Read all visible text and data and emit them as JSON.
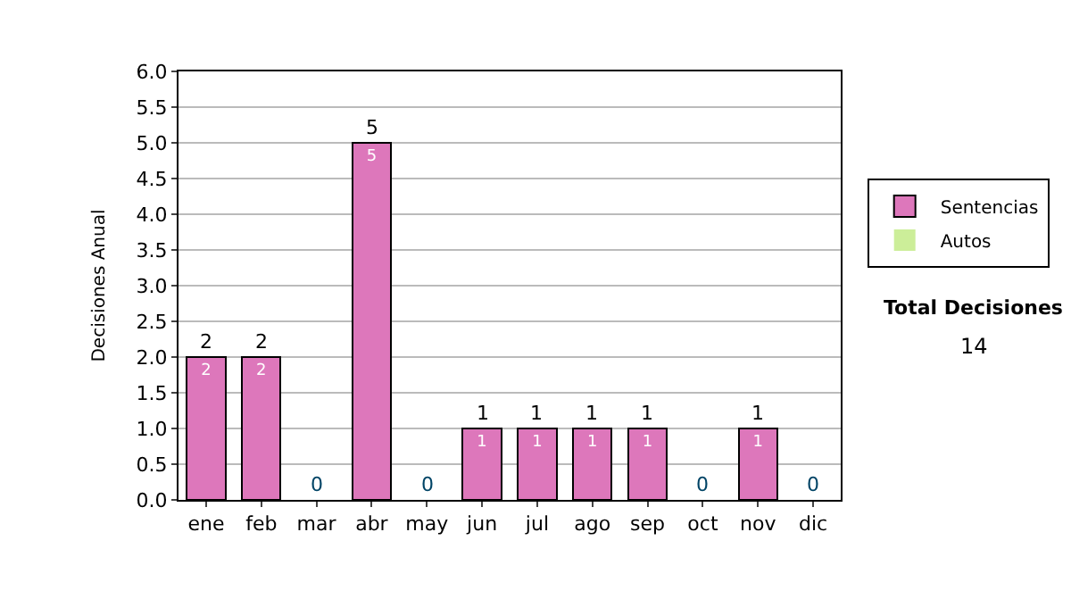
{
  "chart_data": {
    "type": "bar",
    "stacked": true,
    "ylabel": "Decisiones Anual",
    "categories": [
      "ene",
      "feb",
      "mar",
      "abr",
      "may",
      "jun",
      "jul",
      "ago",
      "sep",
      "oct",
      "nov",
      "dic"
    ],
    "series": [
      {
        "name": "Sentencias",
        "color": "#dd77bb",
        "values": [
          2,
          2,
          0,
          5,
          0,
          1,
          1,
          1,
          1,
          0,
          1,
          0
        ],
        "value_labels": [
          "2",
          "2",
          null,
          "5",
          null,
          "1",
          "1",
          "1",
          "1",
          null,
          "1",
          null
        ]
      },
      {
        "name": "Autos",
        "color": "#ccee99",
        "values": [
          0,
          0,
          0,
          0,
          0,
          0,
          0,
          0,
          0,
          0,
          0,
          0
        ]
      }
    ],
    "totals": [
      "2",
      "2",
      "0",
      "5",
      "0",
      "1",
      "1",
      "1",
      "1",
      "0",
      "1",
      "0"
    ],
    "ylim": [
      0,
      6
    ],
    "yticks": [
      {
        "value": 0,
        "label": "0.0"
      },
      {
        "value": 0.5,
        "label": "0.5"
      },
      {
        "value": 1,
        "label": "1.0"
      },
      {
        "value": 1.5,
        "label": "1.5"
      },
      {
        "value": 2,
        "label": "2.0"
      },
      {
        "value": 2.5,
        "label": "2.5"
      },
      {
        "value": 3,
        "label": "3.0"
      },
      {
        "value": 3.5,
        "label": "3.5"
      },
      {
        "value": 4,
        "label": "4.0"
      },
      {
        "value": 4.5,
        "label": "4.5"
      },
      {
        "value": 5,
        "label": "5.0"
      },
      {
        "value": 5.5,
        "label": "5.5"
      },
      {
        "value": 6,
        "label": "6.0"
      }
    ],
    "grid": "y",
    "legend": "right",
    "annotations": [
      "Total Decisiones",
      "14"
    ]
  }
}
